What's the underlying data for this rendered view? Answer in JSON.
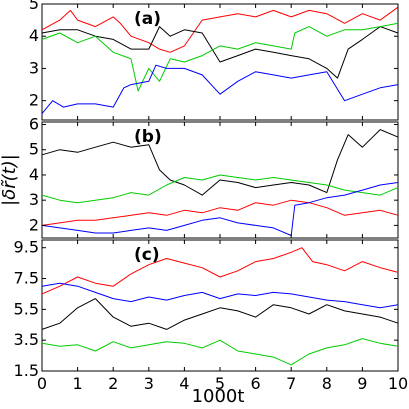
{
  "chart_data": [
    {
      "type": "line",
      "panel_label": "(a)",
      "xlim": [
        0,
        10
      ],
      "ylim": [
        1.4,
        5.0
      ],
      "yticks": [
        "2",
        "3",
        "4",
        "5"
      ],
      "ytick_values": [
        2,
        3,
        4,
        5
      ],
      "grid": false,
      "series": [
        {
          "color": "#ff0000",
          "x": [
            0,
            0.5,
            0.8,
            1.0,
            1.5,
            2.0,
            2.2,
            2.5,
            3.0,
            3.3,
            3.6,
            4.0,
            4.5,
            5.0,
            5.5,
            6.0,
            6.5,
            7.0,
            7.5,
            8.0,
            8.5,
            9.0,
            9.5,
            10.0
          ],
          "y": [
            4.2,
            4.5,
            4.8,
            4.5,
            4.3,
            4.6,
            4.4,
            4.0,
            3.8,
            3.6,
            3.5,
            3.7,
            4.5,
            4.6,
            4.7,
            4.6,
            4.8,
            4.6,
            4.8,
            4.7,
            4.4,
            4.7,
            4.5,
            4.9
          ]
        },
        {
          "color": "#000000",
          "x": [
            0,
            0.5,
            1.0,
            1.5,
            2.0,
            2.5,
            3.0,
            3.3,
            3.6,
            4.0,
            4.5,
            5.0,
            5.5,
            6.0,
            6.5,
            7.0,
            7.5,
            8.0,
            8.3,
            8.6,
            9.0,
            9.5,
            10.0
          ],
          "y": [
            4.1,
            4.2,
            4.2,
            4.0,
            3.9,
            3.6,
            3.6,
            4.3,
            4.0,
            4.2,
            4.1,
            3.2,
            3.4,
            3.6,
            3.5,
            3.4,
            3.3,
            3.0,
            2.7,
            3.6,
            3.9,
            4.3,
            4.1
          ]
        },
        {
          "color": "#00cc00",
          "x": [
            0,
            0.5,
            1.0,
            1.5,
            2.0,
            2.5,
            2.7,
            3.0,
            3.3,
            3.6,
            4.0,
            4.5,
            5.0,
            5.5,
            6.0,
            6.5,
            7.0,
            7.1,
            7.5,
            8.0,
            8.5,
            9.0,
            9.5,
            10.0
          ],
          "y": [
            3.9,
            4.1,
            3.8,
            4.0,
            3.5,
            3.3,
            2.3,
            3.0,
            2.6,
            3.3,
            3.2,
            3.4,
            3.7,
            3.6,
            3.8,
            3.7,
            3.6,
            4.1,
            4.3,
            4.0,
            4.2,
            4.2,
            4.3,
            4.4
          ]
        },
        {
          "color": "#0000ff",
          "x": [
            0,
            0.3,
            0.6,
            1.0,
            1.5,
            2.0,
            2.3,
            2.5,
            3.0,
            3.2,
            3.5,
            4.0,
            4.5,
            5.0,
            5.5,
            6.0,
            6.5,
            7.0,
            7.5,
            8.0,
            8.5,
            9.0,
            9.5,
            10.0
          ],
          "y": [
            1.6,
            2.0,
            1.8,
            1.9,
            1.9,
            1.8,
            2.4,
            2.5,
            2.6,
            3.1,
            3.0,
            3.0,
            2.8,
            2.2,
            2.6,
            2.9,
            2.8,
            2.7,
            2.8,
            2.9,
            2.0,
            2.2,
            2.4,
            2.5
          ]
        }
      ]
    },
    {
      "type": "line",
      "panel_label": "(b)",
      "xlim": [
        0,
        10
      ],
      "ylim": [
        1.5,
        6.1
      ],
      "yticks": [
        "2",
        "3",
        "4",
        "5",
        "6"
      ],
      "ytick_values": [
        2,
        3,
        4,
        5,
        6
      ],
      "grid": false,
      "series": [
        {
          "color": "#000000",
          "x": [
            0,
            0.5,
            1.0,
            1.5,
            2.0,
            2.5,
            3.0,
            3.3,
            3.6,
            4.0,
            4.5,
            5.0,
            5.5,
            6.0,
            6.5,
            7.0,
            7.5,
            8.0,
            8.3,
            8.6,
            9.0,
            9.5,
            10.0
          ],
          "y": [
            4.8,
            5.0,
            4.9,
            5.1,
            5.3,
            5.1,
            5.2,
            4.2,
            3.8,
            3.6,
            3.2,
            3.8,
            3.7,
            3.5,
            3.6,
            3.7,
            3.6,
            3.3,
            4.6,
            5.6,
            5.1,
            5.8,
            5.5
          ]
        },
        {
          "color": "#00cc00",
          "x": [
            0,
            0.5,
            1.0,
            1.5,
            2.0,
            2.5,
            3.0,
            3.5,
            4.0,
            4.5,
            5.0,
            5.5,
            6.0,
            6.5,
            7.0,
            7.5,
            8.0,
            8.5,
            9.0,
            9.5,
            10.0
          ],
          "y": [
            3.2,
            3.0,
            2.9,
            3.0,
            3.1,
            3.3,
            3.2,
            3.6,
            3.9,
            3.8,
            4.0,
            3.9,
            3.8,
            3.9,
            3.8,
            3.7,
            3.6,
            3.4,
            3.3,
            3.2,
            3.5
          ]
        },
        {
          "color": "#ff0000",
          "x": [
            0,
            0.5,
            1.0,
            1.5,
            2.0,
            2.5,
            3.0,
            3.5,
            4.0,
            4.5,
            5.0,
            5.5,
            6.0,
            6.5,
            7.0,
            7.5,
            8.0,
            8.5,
            9.0,
            9.5,
            10.0
          ],
          "y": [
            2.0,
            2.1,
            2.2,
            2.2,
            2.3,
            2.4,
            2.5,
            2.4,
            2.6,
            2.5,
            2.7,
            2.6,
            2.9,
            2.8,
            3.0,
            2.9,
            2.7,
            2.4,
            2.5,
            2.6,
            2.4
          ]
        },
        {
          "color": "#0000ff",
          "x": [
            0,
            0.5,
            1.0,
            1.5,
            2.0,
            2.5,
            3.0,
            3.5,
            4.0,
            4.5,
            5.0,
            5.5,
            6.0,
            6.5,
            7.0,
            7.1,
            7.5,
            8.0,
            8.5,
            9.0,
            9.5,
            10.0
          ],
          "y": [
            2.0,
            1.9,
            1.8,
            1.7,
            1.7,
            1.8,
            1.9,
            1.8,
            2.0,
            2.2,
            2.3,
            2.1,
            2.0,
            1.9,
            1.6,
            2.8,
            2.9,
            3.1,
            3.2,
            3.4,
            3.6,
            3.7
          ]
        }
      ]
    },
    {
      "type": "line",
      "panel_label": "(c)",
      "xlim": [
        0,
        10
      ],
      "ylim": [
        1.5,
        10.0
      ],
      "yticks": [
        "1.5",
        "3.5",
        "5.5",
        "7.5",
        "9.5"
      ],
      "ytick_values": [
        1.5,
        3.5,
        5.5,
        7.5,
        9.5
      ],
      "grid": false,
      "series": [
        {
          "color": "#ff0000",
          "x": [
            0,
            0.5,
            1.0,
            1.5,
            2.0,
            2.5,
            3.0,
            3.5,
            4.0,
            4.5,
            5.0,
            5.5,
            6.0,
            6.5,
            7.0,
            7.3,
            7.6,
            8.0,
            8.5,
            9.0,
            9.5,
            10.0
          ],
          "y": [
            6.5,
            7.0,
            7.6,
            7.2,
            7.0,
            7.8,
            8.4,
            8.8,
            8.5,
            8.2,
            7.6,
            8.0,
            8.6,
            8.8,
            9.2,
            9.5,
            8.6,
            8.4,
            8.0,
            8.6,
            8.2,
            7.9
          ]
        },
        {
          "color": "#0000ff",
          "x": [
            0,
            0.5,
            1.0,
            1.5,
            2.0,
            2.5,
            3.0,
            3.5,
            4.0,
            4.5,
            5.0,
            5.5,
            6.0,
            6.5,
            7.0,
            7.5,
            8.0,
            8.5,
            9.0,
            9.5,
            10.0
          ],
          "y": [
            7.0,
            7.2,
            7.0,
            6.6,
            6.2,
            6.0,
            6.3,
            6.1,
            6.4,
            6.6,
            6.2,
            6.5,
            6.4,
            6.6,
            6.5,
            6.3,
            6.1,
            6.0,
            5.8,
            5.6,
            5.8
          ]
        },
        {
          "color": "#000000",
          "x": [
            0,
            0.5,
            1.0,
            1.5,
            2.0,
            2.5,
            3.0,
            3.5,
            4.0,
            4.5,
            5.0,
            5.5,
            6.0,
            6.5,
            7.0,
            7.5,
            8.0,
            8.5,
            9.0,
            9.5,
            10.0
          ],
          "y": [
            4.2,
            4.6,
            5.6,
            6.2,
            5.0,
            4.4,
            4.6,
            4.2,
            4.8,
            5.2,
            5.6,
            5.4,
            5.0,
            5.8,
            5.6,
            5.2,
            5.8,
            5.4,
            5.2,
            5.0,
            4.6
          ]
        },
        {
          "color": "#00cc00",
          "x": [
            0,
            0.5,
            1.0,
            1.5,
            2.0,
            2.5,
            3.0,
            3.5,
            4.0,
            4.5,
            5.0,
            5.5,
            6.0,
            6.5,
            7.0,
            7.5,
            8.0,
            8.5,
            9.0,
            9.5,
            10.0
          ],
          "y": [
            3.3,
            3.1,
            3.2,
            2.8,
            3.4,
            3.0,
            3.2,
            3.4,
            3.3,
            3.0,
            3.5,
            2.8,
            2.6,
            2.4,
            1.9,
            2.6,
            3.0,
            3.2,
            3.6,
            3.3,
            3.1
          ]
        }
      ]
    }
  ],
  "axes": {
    "xticks": [
      "0",
      "1",
      "2",
      "3",
      "4",
      "5",
      "6",
      "7",
      "8",
      "9",
      "10"
    ],
    "xlabel": "1000t",
    "ylabel": "|δr̃(t)|"
  }
}
